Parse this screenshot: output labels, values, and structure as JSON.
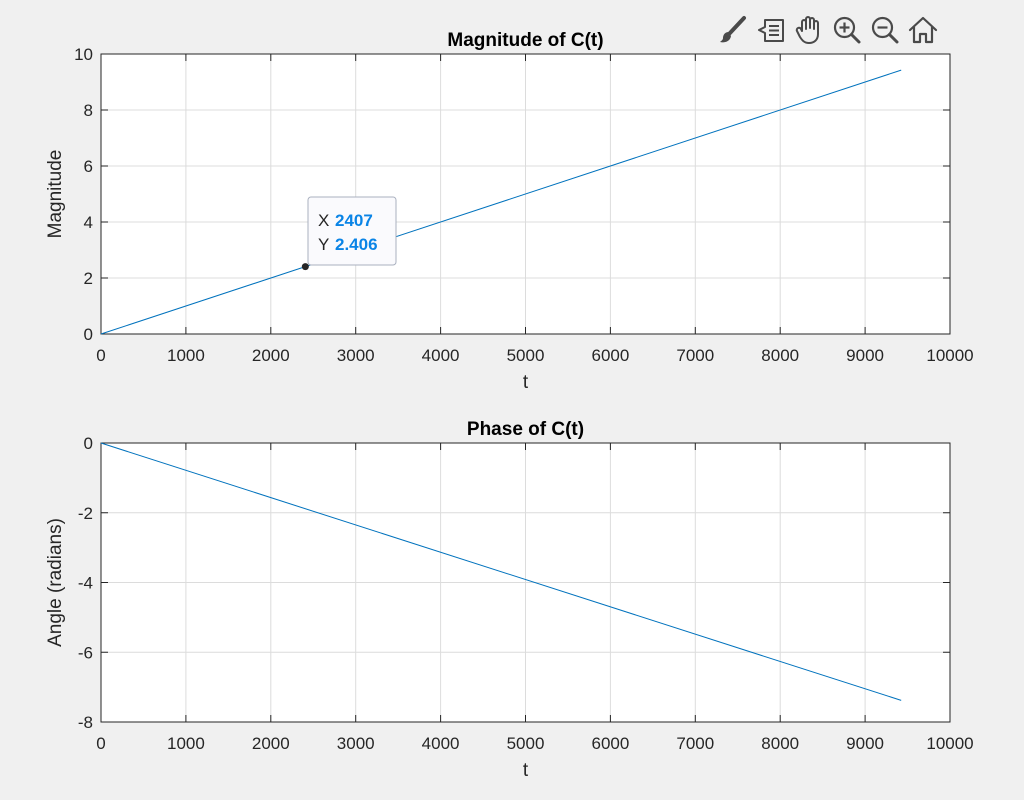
{
  "toolbar": {
    "items": [
      {
        "name": "brush-icon"
      },
      {
        "name": "data-tips-icon"
      },
      {
        "name": "pan-hand-icon"
      },
      {
        "name": "zoom-in-icon"
      },
      {
        "name": "zoom-out-icon"
      },
      {
        "name": "home-icon"
      }
    ],
    "icon_color": "#4a4a4a"
  },
  "colors": {
    "line": "#0072bd",
    "grid": "#dcdcdc",
    "axes": "#262626",
    "figure_bg": "#f0f0f0",
    "tip_value": "#0a84e6"
  },
  "chart_data": [
    {
      "type": "line",
      "title": "Magnitude of C(t)",
      "xlabel": "t",
      "ylabel": "Magnitude",
      "xlim": [
        0,
        10000
      ],
      "ylim": [
        0,
        10
      ],
      "xticks": [
        0,
        1000,
        2000,
        3000,
        4000,
        5000,
        6000,
        7000,
        8000,
        9000,
        10000
      ],
      "yticks": [
        0,
        2,
        4,
        6,
        8,
        10
      ],
      "grid": true,
      "series": [
        {
          "x": [
            0,
            9425
          ],
          "y": [
            0,
            9.425
          ]
        }
      ],
      "datatip": {
        "x": 2407,
        "y": 2.406,
        "x_label": "X",
        "y_label": "Y",
        "x_text": "2407",
        "y_text": "2.406"
      }
    },
    {
      "type": "line",
      "title": "Phase of C(t)",
      "xlabel": "t",
      "ylabel": "Angle (radians)",
      "xlim": [
        0,
        10000
      ],
      "ylim": [
        -8,
        0
      ],
      "xticks": [
        0,
        1000,
        2000,
        3000,
        4000,
        5000,
        6000,
        7000,
        8000,
        9000,
        10000
      ],
      "yticks": [
        -8,
        -6,
        -4,
        -2,
        0
      ],
      "grid": true,
      "series": [
        {
          "x": [
            0,
            9425
          ],
          "y": [
            0,
            -7.38
          ]
        }
      ]
    }
  ]
}
